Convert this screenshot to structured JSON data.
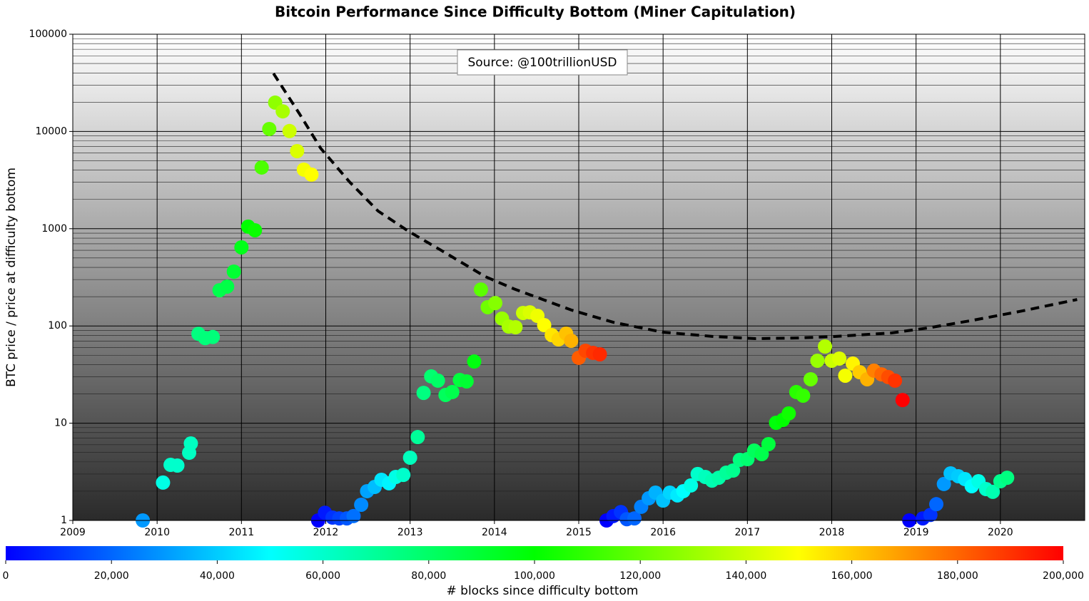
{
  "chart_data": {
    "type": "scatter",
    "title": "Bitcoin Performance Since Difficulty Bottom (Miner Capitulation)",
    "ylabel": "BTC price / price at difficulty bottom",
    "annotation": "Source: @100trillionUSD",
    "yscale": "log",
    "grid": true,
    "colormap": "rainbow",
    "xlim": [
      2009,
      2021
    ],
    "xticks": [
      2009,
      2010,
      2011,
      2012,
      2013,
      2014,
      2015,
      2016,
      2017,
      2018,
      2019,
      2020
    ],
    "ylim": [
      1,
      100000
    ],
    "yticks": [
      1,
      10,
      100,
      1000,
      10000,
      100000
    ],
    "x": [
      2009.83,
      2010.07,
      2010.16,
      2010.24,
      2010.38,
      2010.4,
      2010.49,
      2010.57,
      2010.66,
      2010.74,
      2010.83,
      2010.91,
      2011.0,
      2011.08,
      2011.16,
      2011.24,
      2011.33,
      2011.4,
      2011.49,
      2011.57,
      2011.66,
      2011.74,
      2011.83,
      2011.91,
      2011.99,
      2012.08,
      2012.16,
      2012.25,
      2012.33,
      2012.42,
      2012.49,
      2012.58,
      2012.66,
      2012.75,
      2012.83,
      2012.92,
      2013.0,
      2013.09,
      2013.16,
      2013.25,
      2013.33,
      2013.42,
      2013.5,
      2013.59,
      2013.67,
      2013.76,
      2013.84,
      2013.92,
      2014.01,
      2014.09,
      2014.17,
      2014.25,
      2014.34,
      2014.42,
      2014.51,
      2014.59,
      2014.68,
      2014.76,
      2014.85,
      2014.91,
      2015.0,
      2015.08,
      2015.17,
      2015.25,
      2015.33,
      2015.41,
      2015.5,
      2015.57,
      2015.66,
      2015.74,
      2015.83,
      2015.91,
      2016.0,
      2016.08,
      2016.17,
      2016.24,
      2016.33,
      2016.41,
      2016.5,
      2016.58,
      2016.66,
      2016.75,
      2016.83,
      2016.91,
      2017.0,
      2017.08,
      2017.17,
      2017.25,
      2017.34,
      2017.42,
      2017.49,
      2017.58,
      2017.66,
      2017.75,
      2017.83,
      2017.92,
      2018.0,
      2018.09,
      2018.16,
      2018.25,
      2018.33,
      2018.42,
      2018.5,
      2018.59,
      2018.67,
      2018.75,
      2018.84,
      2018.92,
      2019.08,
      2019.17,
      2019.24,
      2019.33,
      2019.41,
      2019.5,
      2019.58,
      2019.66,
      2019.74,
      2019.83,
      2019.91,
      2020.0,
      2020.08
    ],
    "y": [
      1,
      2.45,
      3.73,
      3.67,
      4.97,
      6.19,
      83,
      75,
      77,
      233,
      254,
      362,
      643,
      1050,
      964,
      4260,
      10600,
      19800,
      16100,
      10100,
      6280,
      4050,
      3600,
      1,
      1.2,
      1.07,
      1.05,
      1.05,
      1.11,
      1.45,
      2.0,
      2.21,
      2.62,
      2.41,
      2.8,
      2.94,
      4.42,
      7.2,
      20.5,
      30.3,
      27.4,
      19.5,
      20.9,
      27.8,
      26.9,
      43.1,
      237,
      156,
      172,
      119,
      98.6,
      97,
      136,
      138,
      127,
      102,
      80.5,
      72.8,
      83.4,
      70.4,
      47,
      55.6,
      52.8,
      51.1,
      1,
      1.11,
      1.22,
      1.03,
      1.05,
      1.38,
      1.69,
      1.93,
      1.6,
      1.93,
      1.81,
      2.0,
      2.29,
      3.0,
      2.8,
      2.57,
      2.75,
      3.1,
      3.26,
      4.2,
      4.27,
      5.23,
      4.81,
      6.09,
      10.1,
      10.8,
      12.6,
      20.9,
      19.2,
      28.3,
      43.9,
      61.5,
      43.9,
      46.2,
      30.8,
      41,
      33.5,
      28.3,
      34.7,
      31.8,
      29.8,
      27.4,
      17.3,
      1,
      1.05,
      1.14,
      1.47,
      2.37,
      3.05,
      2.85,
      2.66,
      2.25,
      2.53,
      2.1,
      1.97,
      2.53,
      2.75
    ],
    "c": [
      30000,
      55000,
      60000,
      60000,
      62000,
      62000,
      75000,
      76000,
      76000,
      85000,
      86000,
      90000,
      95000,
      100000,
      102000,
      115000,
      120000,
      128000,
      133000,
      140000,
      143000,
      148000,
      150000,
      0,
      5000,
      10000,
      13000,
      17000,
      22000,
      27000,
      32000,
      37000,
      45000,
      48000,
      55000,
      60000,
      63000,
      70000,
      75000,
      78000,
      80000,
      82000,
      85000,
      88000,
      90000,
      97000,
      118000,
      122000,
      126000,
      130000,
      133000,
      135000,
      140000,
      143000,
      147000,
      150000,
      155000,
      158000,
      162000,
      165000,
      182000,
      186000,
      190000,
      192000,
      0,
      5000,
      10000,
      17000,
      20000,
      25000,
      30000,
      35000,
      38000,
      42000,
      46000,
      50000,
      55000,
      60000,
      63000,
      65000,
      67000,
      70000,
      72000,
      75000,
      78000,
      82000,
      85000,
      88000,
      98000,
      100000,
      103000,
      108000,
      110000,
      120000,
      130000,
      135000,
      140000,
      143000,
      148000,
      152000,
      160000,
      165000,
      175000,
      180000,
      185000,
      190000,
      200000,
      0,
      5000,
      10000,
      20000,
      30000,
      38000,
      40000,
      45000,
      50000,
      55000,
      60000,
      65000,
      72000,
      75000
    ],
    "trend": {
      "color": "#000000",
      "x": [
        2011.38,
        2011.69,
        2011.94,
        2012.28,
        2012.62,
        2012.99,
        2013.38,
        2013.89,
        2014.23,
        2014.91,
        2015.41,
        2016.0,
        2016.6,
        2017.1,
        2017.61,
        2018.03,
        2018.71,
        2019.14,
        2019.64,
        2020.23,
        2020.91
      ],
      "y": [
        39500,
        15100,
        6710,
        3040,
        1520,
        931,
        591,
        322,
        241,
        146,
        109,
        86.2,
        77.9,
        74.1,
        75.3,
        77.9,
        84.8,
        95.4,
        113,
        141,
        187
      ]
    },
    "colorbar": {
      "label": "# blocks since difficulty bottom",
      "lim": [
        0,
        200000
      ],
      "ticks": [
        0,
        {
          "value": 20000,
          "label": "20,000"
        },
        {
          "value": 40000,
          "label": "40,000"
        },
        {
          "value": 60000,
          "label": "60,000"
        },
        {
          "value": 80000,
          "label": "80,000"
        },
        {
          "value": 100000,
          "label": "100,000"
        },
        {
          "value": 120000,
          "label": "120,000"
        },
        {
          "value": 140000,
          "label": "140,000"
        },
        {
          "value": 160000,
          "label": "160,000"
        },
        {
          "value": 180000,
          "label": "180,000"
        },
        {
          "value": 200000,
          "label": "200,000"
        }
      ]
    }
  }
}
